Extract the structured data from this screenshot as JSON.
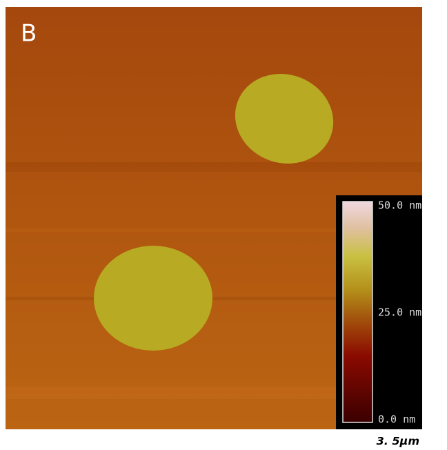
{
  "panel_label": "B",
  "colorbar": {
    "top_label": "50.0 nm",
    "middle_label": "25.0 nm",
    "bottom_label": "0.0 nm"
  },
  "scale_bar": "3. 5μm"
}
